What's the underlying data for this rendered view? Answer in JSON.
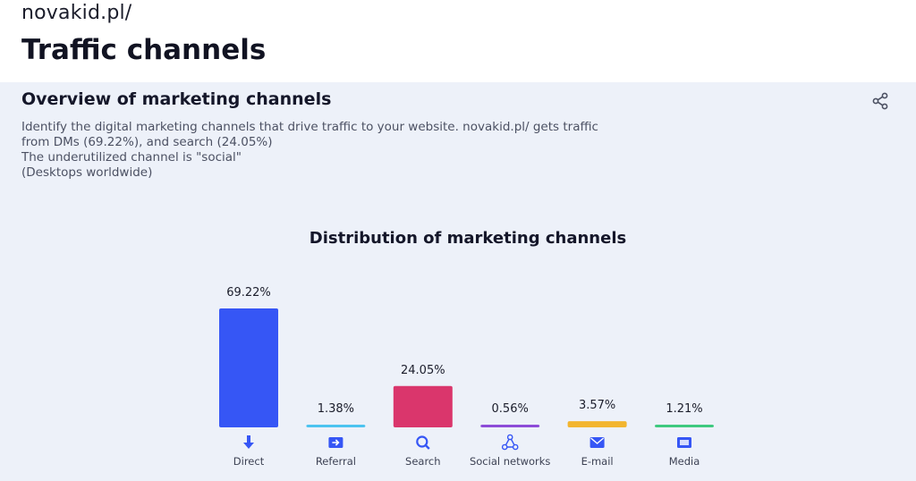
{
  "header": {
    "site": "novakid.pl/",
    "title": "Traffic channels"
  },
  "panel": {
    "title": "Overview of marketing channels",
    "description": [
      "Identify the digital marketing channels that drive traffic to your website. novakid.pl/ gets traffic",
      "from DMs (69.22%), and search (24.05%)",
      "The underutilized channel is \"social\"",
      "(Desktops worldwide)"
    ],
    "share_icon": "share-icon"
  },
  "chart_data": {
    "type": "bar",
    "title": "Distribution of marketing channels",
    "categories": [
      "Direct",
      "Referral",
      "Search",
      "Social networks",
      "E-mail",
      "Media"
    ],
    "values": [
      69.22,
      1.38,
      24.05,
      0.56,
      3.57,
      1.21
    ],
    "value_labels": [
      "69.22%",
      "1.38%",
      "24.05%",
      "0.56%",
      "3.57%",
      "1.21%"
    ],
    "colors": [
      "#3656f5",
      "#4cc3f0",
      "#da366c",
      "#8d4cd8",
      "#f2b52f",
      "#3ec97f"
    ],
    "icons": [
      "direct-icon",
      "referral-icon",
      "search-icon",
      "social-networks-icon",
      "email-icon",
      "media-icon"
    ],
    "unit": "%",
    "ylim": [
      0,
      69.22
    ],
    "grid": false,
    "legend": "none"
  }
}
